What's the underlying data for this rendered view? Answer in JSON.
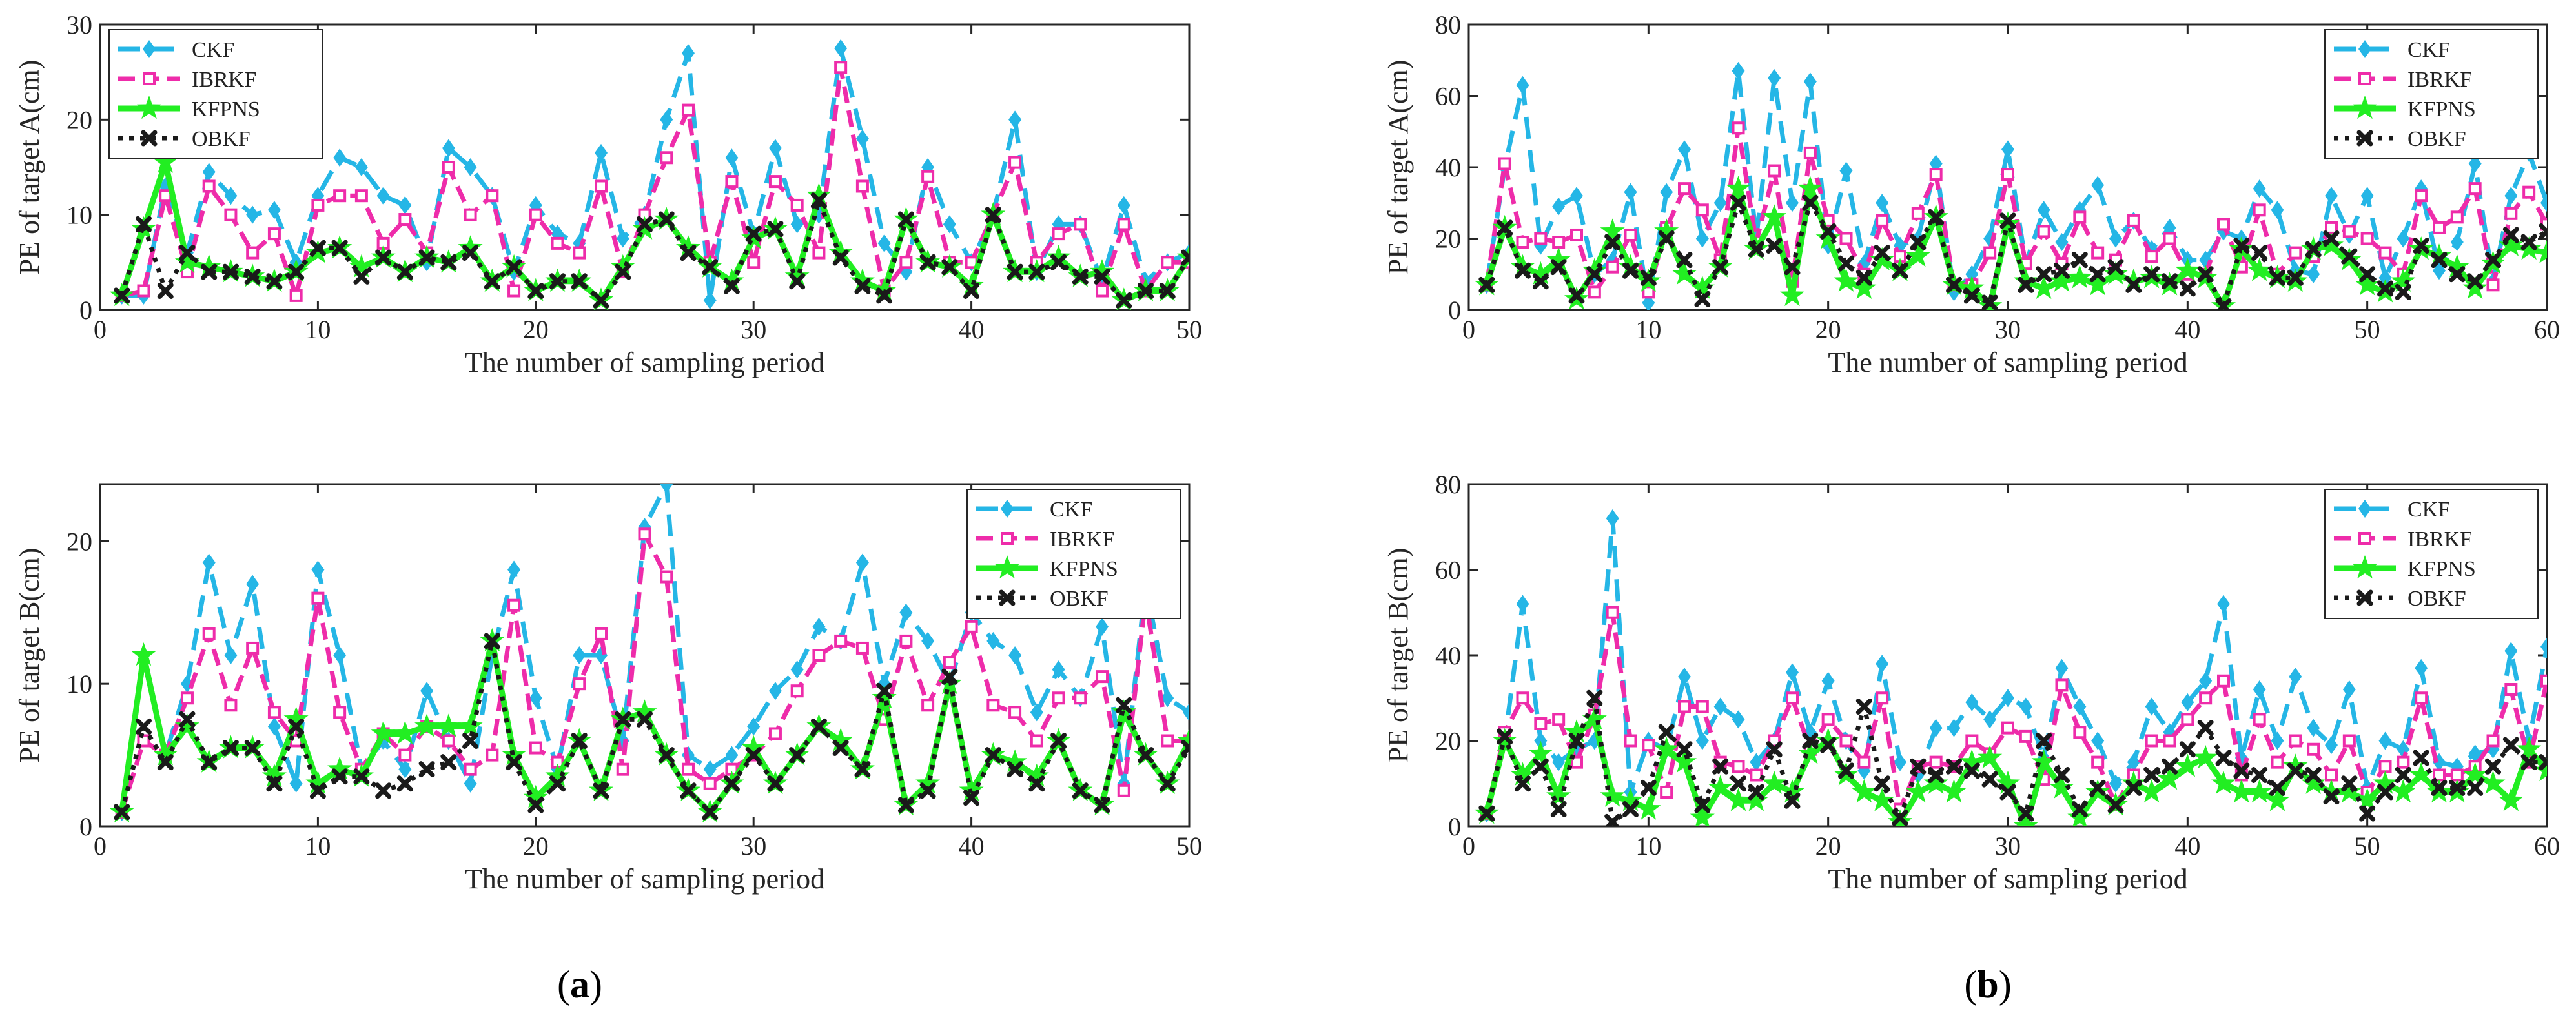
{
  "colors": {
    "CKF": "#25b6e6",
    "IBRKF": "#ee2caa",
    "KFPNS": "#22ee22",
    "OBKF": "#1a1a1a"
  },
  "captions": [
    {
      "open": "(",
      "letter": "a",
      "close": ")"
    },
    {
      "open": "(",
      "letter": "b",
      "close": ")"
    }
  ],
  "chart_data": [
    {
      "type": "line",
      "xlabel": "The number of sampling period",
      "ylabel": "PE of target A(cm)",
      "xlim": [
        0,
        50
      ],
      "ylim": [
        0,
        30
      ],
      "xticks": [
        0,
        10,
        20,
        30,
        40,
        50
      ],
      "yticks": [
        0,
        10,
        20,
        30
      ],
      "legend": "top-left",
      "x": [
        1,
        2,
        3,
        4,
        5,
        6,
        7,
        8,
        9,
        10,
        11,
        12,
        13,
        14,
        15,
        16,
        17,
        18,
        19,
        20,
        21,
        22,
        23,
        24,
        25,
        26,
        27,
        28,
        29,
        30,
        31,
        32,
        33,
        34,
        35,
        36,
        37,
        38,
        39,
        40,
        41,
        42,
        43,
        44,
        45,
        46,
        47,
        48,
        49,
        50
      ],
      "series": [
        {
          "name": "CKF",
          "values": [
            1.5,
            1.5,
            13,
            6,
            14.5,
            12,
            10,
            10.5,
            5,
            12,
            16,
            15,
            12,
            11,
            5,
            17,
            15,
            12,
            4,
            11,
            8,
            7,
            16.5,
            7.5,
            10,
            20,
            27,
            1,
            16,
            8,
            17,
            9,
            10,
            27.5,
            18,
            7,
            4,
            15,
            9,
            5,
            10,
            20,
            4,
            9,
            9,
            3,
            11,
            3,
            5,
            6
          ]
        },
        {
          "name": "IBRKF",
          "values": [
            1.5,
            2,
            12,
            4,
            13,
            10,
            6,
            8,
            1.5,
            11,
            12,
            12,
            7,
            9.5,
            6,
            15,
            10,
            12,
            2,
            10,
            7,
            6,
            13,
            4,
            10,
            16,
            21,
            5,
            13.5,
            5,
            13.5,
            11,
            6,
            25.5,
            13,
            2,
            5,
            14,
            5,
            5,
            10,
            15.5,
            5,
            8,
            9,
            2,
            9,
            2,
            5,
            5
          ]
        },
        {
          "name": "KFPNS",
          "values": [
            1.5,
            8.5,
            15.5,
            5,
            4.5,
            4,
            3.5,
            3,
            4,
            6,
            6.5,
            4.5,
            5.5,
            4,
            5.5,
            5,
            6.5,
            3,
            4.5,
            2,
            3,
            3,
            1,
            4.5,
            8.5,
            9.5,
            6.5,
            4.5,
            3,
            7.5,
            8.5,
            3.5,
            12,
            6,
            3,
            2,
            9.5,
            5,
            4.5,
            2.5,
            10,
            4,
            4,
            5.5,
            3.5,
            4,
            1,
            2,
            2,
            5.5
          ]
        },
        {
          "name": "OBKF",
          "values": [
            1.5,
            9,
            2,
            6,
            4,
            4,
            3.5,
            3,
            4,
            6.5,
            6.5,
            3.5,
            5.5,
            4,
            5.5,
            5,
            6,
            3,
            4.5,
            2,
            3,
            3,
            1,
            4,
            9,
            9.5,
            6,
            4.5,
            2.5,
            8,
            8.5,
            3,
            11.5,
            5.5,
            2.5,
            1.5,
            9.5,
            5,
            4.5,
            2,
            10,
            4,
            4,
            5,
            3.5,
            3.5,
            1,
            2,
            2,
            5.5
          ]
        }
      ]
    },
    {
      "type": "line",
      "xlabel": "The number of sampling period",
      "ylabel": "PE of target A(cm)",
      "xlim": [
        0,
        60
      ],
      "ylim": [
        0,
        80
      ],
      "xticks": [
        0,
        10,
        20,
        30,
        40,
        50,
        60
      ],
      "yticks": [
        0,
        20,
        40,
        60,
        80
      ],
      "legend": "top-right",
      "x": [
        1,
        2,
        3,
        4,
        5,
        6,
        7,
        8,
        9,
        10,
        11,
        12,
        13,
        14,
        15,
        16,
        17,
        18,
        19,
        20,
        21,
        22,
        23,
        24,
        25,
        26,
        27,
        28,
        29,
        30,
        31,
        32,
        33,
        34,
        35,
        36,
        37,
        38,
        39,
        40,
        41,
        42,
        43,
        44,
        45,
        46,
        47,
        48,
        49,
        50,
        51,
        52,
        53,
        54,
        55,
        56,
        57,
        58,
        59,
        60
      ],
      "series": [
        {
          "name": "CKF",
          "values": [
            7,
            40,
            63,
            18,
            29,
            32,
            10,
            14,
            33,
            2,
            33,
            45,
            20,
            30,
            67,
            20,
            65,
            30,
            64,
            18,
            39,
            13,
            30,
            18,
            20,
            41,
            5,
            10,
            20,
            45,
            13,
            28,
            19,
            28,
            35,
            20,
            25,
            17,
            23,
            14,
            14,
            22,
            20,
            34,
            28,
            11,
            10,
            32,
            21,
            32,
            9,
            20,
            34,
            11,
            19,
            41,
            8,
            32,
            44,
            30
          ]
        },
        {
          "name": "IBRKF",
          "values": [
            7,
            41,
            19,
            20,
            19,
            21,
            5,
            12,
            21,
            5,
            23,
            34,
            28,
            14,
            51,
            19,
            39,
            8,
            44,
            25,
            20,
            10,
            25,
            15,
            27,
            38,
            7,
            7,
            16,
            38,
            13,
            22,
            13,
            26,
            16,
            14,
            25,
            15,
            20,
            10,
            10,
            24,
            12,
            28,
            10,
            16,
            15,
            23,
            22,
            20,
            16,
            10,
            32,
            23,
            26,
            34,
            7,
            27,
            33,
            24
          ]
        },
        {
          "name": "KFPNS",
          "values": [
            7,
            23,
            12,
            10,
            14,
            3,
            11,
            22,
            12,
            8,
            22,
            10,
            6,
            12,
            34,
            17,
            26,
            4,
            34,
            20,
            8,
            6,
            14,
            11,
            15,
            26,
            7,
            6,
            1,
            24,
            8,
            6,
            8,
            9,
            7,
            10,
            8,
            9,
            7,
            11,
            9,
            1,
            17,
            11,
            9,
            8,
            17,
            18,
            14,
            7,
            5,
            8,
            17,
            15,
            12,
            6,
            13,
            18,
            17,
            16
          ]
        },
        {
          "name": "OBKF",
          "values": [
            7,
            23,
            11,
            8,
            12,
            4,
            10,
            19,
            11,
            9,
            20,
            14,
            3,
            12,
            30,
            17,
            18,
            12,
            30,
            22,
            13,
            9,
            16,
            11,
            19,
            26,
            7,
            4,
            2,
            25,
            7,
            10,
            11,
            14,
            10,
            12,
            7,
            10,
            8,
            6,
            10,
            1,
            18,
            16,
            9,
            9,
            17,
            20,
            15,
            10,
            6,
            5,
            18,
            14,
            10,
            8,
            14,
            21,
            19,
            22
          ]
        }
      ]
    },
    {
      "type": "line",
      "xlabel": "The number of sampling period",
      "ylabel": "PE of target B(cm)",
      "xlim": [
        0,
        50
      ],
      "ylim": [
        0,
        24
      ],
      "xticks": [
        0,
        10,
        20,
        30,
        40,
        50
      ],
      "yticks": [
        0,
        10,
        20
      ],
      "legend": "top-right",
      "x": [
        1,
        2,
        3,
        4,
        5,
        6,
        7,
        8,
        9,
        10,
        11,
        12,
        13,
        14,
        15,
        16,
        17,
        18,
        19,
        20,
        21,
        22,
        23,
        24,
        25,
        26,
        27,
        28,
        29,
        30,
        31,
        32,
        33,
        34,
        35,
        36,
        37,
        38,
        39,
        40,
        41,
        42,
        43,
        44,
        45,
        46,
        47,
        48,
        49,
        50
      ],
      "series": [
        {
          "name": "CKF",
          "values": [
            1,
            12,
            5,
            10,
            18.5,
            12,
            17,
            7,
            3,
            18,
            12,
            4,
            6,
            4,
            9.5,
            6,
            3,
            12,
            18,
            9,
            4,
            12,
            12,
            6,
            21,
            24,
            5,
            4,
            5,
            7,
            9.5,
            11,
            14,
            13,
            18.5,
            10,
            15,
            13,
            10,
            15,
            13,
            12,
            8,
            11,
            9,
            14,
            3,
            17,
            9,
            8
          ]
        },
        {
          "name": "IBRKF",
          "values": [
            1,
            6,
            5,
            9,
            13.5,
            8.5,
            12.5,
            8,
            6,
            16,
            8,
            4,
            6.5,
            5,
            7,
            6,
            4,
            5,
            15.5,
            5.5,
            4.5,
            10,
            13.5,
            4,
            20.5,
            17.5,
            4,
            3,
            4,
            5,
            6.5,
            9.5,
            12,
            13,
            12.5,
            7.5,
            13,
            8.5,
            11.5,
            14,
            8.5,
            8,
            6,
            9,
            9,
            10.5,
            2.5,
            16,
            6,
            6
          ]
        },
        {
          "name": "KFPNS",
          "values": [
            1,
            12,
            5,
            7,
            4.5,
            5.5,
            5.5,
            3.5,
            7.5,
            3,
            4,
            3.5,
            6.5,
            6.5,
            7,
            7,
            7,
            13,
            5,
            2,
            3.5,
            6,
            2.5,
            7.5,
            8,
            5,
            2.5,
            1,
            3,
            5.5,
            3,
            5,
            7,
            6,
            4,
            9,
            1.5,
            3,
            10,
            2.5,
            5,
            4.5,
            3.5,
            6,
            2.5,
            1.5,
            8,
            5,
            3,
            6
          ]
        },
        {
          "name": "OBKF",
          "values": [
            1,
            7,
            4.5,
            7.5,
            4.5,
            5.5,
            5.5,
            3,
            7,
            2.5,
            3.5,
            3.5,
            2.5,
            3,
            4,
            4.5,
            6,
            13,
            4.5,
            1.5,
            3,
            6,
            2.5,
            7.5,
            7.5,
            5,
            2.5,
            1,
            3,
            5,
            3,
            5,
            7,
            5.5,
            4,
            9.5,
            1.5,
            2.5,
            10.5,
            2,
            5,
            4,
            3,
            6,
            2.5,
            1.5,
            8.5,
            5,
            3,
            5.5
          ]
        }
      ]
    },
    {
      "type": "line",
      "xlabel": "The number of sampling period",
      "ylabel": "PE of target B(cm)",
      "xlim": [
        0,
        60
      ],
      "ylim": [
        0,
        80
      ],
      "xticks": [
        0,
        10,
        20,
        30,
        40,
        50,
        60
      ],
      "yticks": [
        0,
        20,
        40,
        60,
        80
      ],
      "legend": "top-right",
      "x": [
        1,
        2,
        3,
        4,
        5,
        6,
        7,
        8,
        9,
        10,
        11,
        12,
        13,
        14,
        15,
        16,
        17,
        18,
        19,
        20,
        21,
        22,
        23,
        24,
        25,
        26,
        27,
        28,
        29,
        30,
        31,
        32,
        33,
        34,
        35,
        36,
        37,
        38,
        39,
        40,
        41,
        42,
        43,
        44,
        45,
        46,
        47,
        48,
        49,
        50,
        51,
        52,
        53,
        54,
        55,
        56,
        57,
        58,
        59,
        60
      ],
      "series": [
        {
          "name": "CKF",
          "values": [
            3,
            20,
            52,
            20,
            15,
            18,
            20,
            72,
            8,
            20,
            18,
            35,
            20,
            28,
            25,
            15,
            20,
            36,
            22,
            34,
            20,
            13,
            38,
            15,
            12,
            23,
            23,
            29,
            25,
            30,
            28,
            16,
            37,
            28,
            20,
            10,
            15,
            28,
            22,
            29,
            34,
            52,
            16,
            32,
            20,
            35,
            23,
            19,
            32,
            9,
            20,
            18,
            37,
            15,
            14,
            17,
            18,
            41,
            20,
            42
          ]
        },
        {
          "name": "IBRKF",
          "values": [
            3,
            22,
            30,
            24,
            25,
            15,
            26,
            50,
            20,
            19,
            8,
            28,
            28,
            15,
            14,
            12,
            20,
            30,
            18,
            25,
            20,
            15,
            30,
            4,
            14,
            15,
            14,
            20,
            17,
            23,
            21,
            11,
            33,
            22,
            15,
            5,
            12,
            20,
            20,
            25,
            30,
            34,
            12,
            25,
            15,
            20,
            18,
            12,
            20,
            8,
            14,
            15,
            30,
            12,
            12,
            14,
            20,
            32,
            15,
            34
          ]
        },
        {
          "name": "KFPNS",
          "values": [
            3,
            20,
            12,
            17,
            7,
            22,
            25,
            7,
            6,
            4,
            18,
            15,
            2,
            9,
            6,
            6,
            10,
            8,
            17,
            20,
            12,
            8,
            6,
            1,
            8,
            10,
            8,
            15,
            16,
            10,
            0,
            15,
            9,
            2,
            8,
            5,
            10,
            8,
            11,
            14,
            16,
            10,
            8,
            8,
            6,
            14,
            10,
            8,
            8,
            6,
            10,
            8,
            12,
            8,
            8,
            12,
            10,
            6,
            18,
            13
          ]
        },
        {
          "name": "OBKF",
          "values": [
            3,
            21,
            10,
            14,
            4,
            20,
            30,
            1,
            4,
            9,
            22,
            18,
            5,
            14,
            10,
            8,
            18,
            6,
            20,
            19,
            13,
            28,
            10,
            2,
            14,
            12,
            14,
            13,
            11,
            8,
            3,
            20,
            12,
            4,
            9,
            5,
            9,
            12,
            14,
            18,
            23,
            16,
            13,
            12,
            9,
            13,
            12,
            7,
            10,
            3,
            8,
            12,
            16,
            9,
            9,
            9,
            14,
            19,
            15,
            15
          ]
        }
      ]
    }
  ]
}
